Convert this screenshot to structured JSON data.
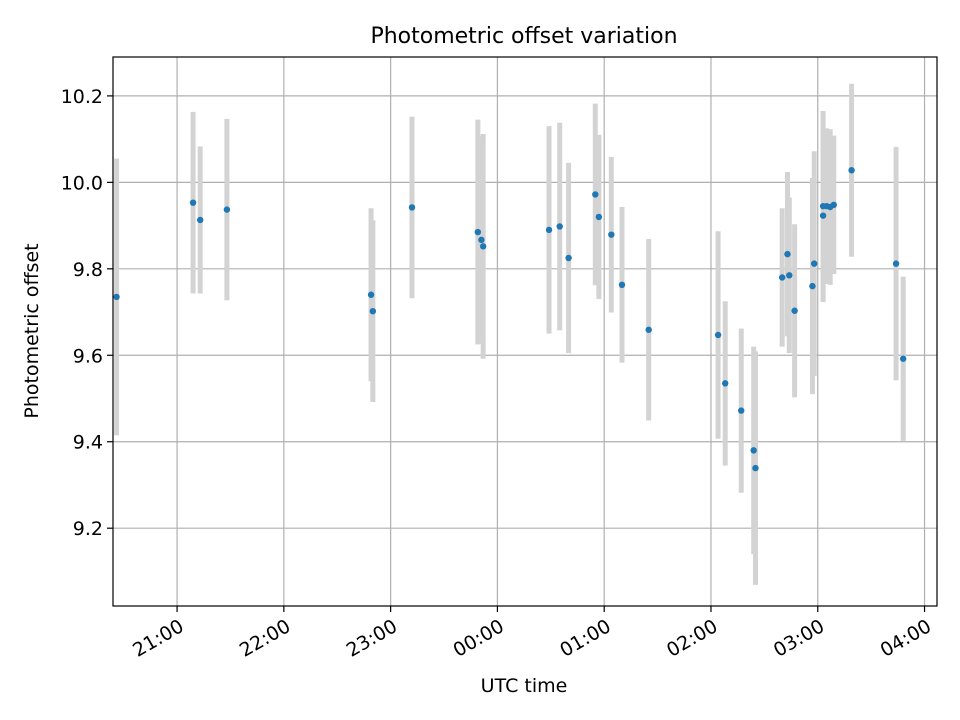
{
  "chart_data": {
    "type": "scatter",
    "title": "Photometric offset variation",
    "xlabel": "UTC time",
    "ylabel": "Photometric offset",
    "x_ticks": [
      "21:00",
      "22:00",
      "23:00",
      "00:00",
      "01:00",
      "02:00",
      "03:00",
      "04:00"
    ],
    "y_ticks": [
      "9.2",
      "9.4",
      "9.6",
      "9.8",
      "10.0",
      "10.2"
    ],
    "x_range": [
      "20:24",
      "04:07"
    ],
    "ylim": [
      9.02,
      10.29
    ],
    "grid": true,
    "colors": {
      "point": "#1f77b4",
      "errorbar": "#d3d3d3",
      "grid": "#b0b0b0"
    },
    "points": [
      {
        "t": "20:26",
        "y": 9.735,
        "err": 0.32
      },
      {
        "t": "21:09",
        "y": 9.953,
        "err": 0.21
      },
      {
        "t": "21:13",
        "y": 9.913,
        "err": 0.17
      },
      {
        "t": "21:28",
        "y": 9.937,
        "err": 0.21
      },
      {
        "t": "22:49",
        "y": 9.74,
        "err": 0.2
      },
      {
        "t": "22:50",
        "y": 9.702,
        "err": 0.21
      },
      {
        "t": "23:12",
        "y": 9.942,
        "err": 0.21
      },
      {
        "t": "23:49",
        "y": 9.885,
        "err": 0.26
      },
      {
        "t": "23:51",
        "y": 9.867,
        "err": 0.24
      },
      {
        "t": "23:52",
        "y": 9.852,
        "err": 0.26
      },
      {
        "t": "00:29",
        "y": 9.89,
        "err": 0.24
      },
      {
        "t": "00:35",
        "y": 9.898,
        "err": 0.24
      },
      {
        "t": "00:40",
        "y": 9.825,
        "err": 0.22
      },
      {
        "t": "00:55",
        "y": 9.972,
        "err": 0.21
      },
      {
        "t": "00:57",
        "y": 9.92,
        "err": 0.19
      },
      {
        "t": "01:04",
        "y": 9.879,
        "err": 0.18
      },
      {
        "t": "01:10",
        "y": 9.763,
        "err": 0.18
      },
      {
        "t": "01:25",
        "y": 9.659,
        "err": 0.21
      },
      {
        "t": "02:04",
        "y": 9.647,
        "err": 0.24
      },
      {
        "t": "02:08",
        "y": 9.535,
        "err": 0.19
      },
      {
        "t": "02:17",
        "y": 9.472,
        "err": 0.19
      },
      {
        "t": "02:24",
        "y": 9.38,
        "err": 0.24
      },
      {
        "t": "02:25",
        "y": 9.339,
        "err": 0.27
      },
      {
        "t": "02:40",
        "y": 9.78,
        "err": 0.16
      },
      {
        "t": "02:43",
        "y": 9.834,
        "err": 0.19
      },
      {
        "t": "02:44",
        "y": 9.785,
        "err": 0.18
      },
      {
        "t": "02:47",
        "y": 9.703,
        "err": 0.2
      },
      {
        "t": "02:57",
        "y": 9.76,
        "err": 0.25
      },
      {
        "t": "02:58",
        "y": 9.812,
        "err": 0.26
      },
      {
        "t": "03:03",
        "y": 9.923,
        "err": 0.2
      },
      {
        "t": "03:03",
        "y": 9.945,
        "err": 0.22
      },
      {
        "t": "03:05",
        "y": 9.945,
        "err": 0.18
      },
      {
        "t": "03:07",
        "y": 9.943,
        "err": 0.18
      },
      {
        "t": "03:09",
        "y": 9.948,
        "err": 0.16
      },
      {
        "t": "03:19",
        "y": 10.028,
        "err": 0.2
      },
      {
        "t": "03:44",
        "y": 9.812,
        "err": 0.27
      },
      {
        "t": "03:48",
        "y": 9.592,
        "err": 0.19
      }
    ]
  }
}
